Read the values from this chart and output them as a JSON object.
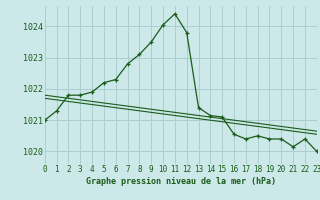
{
  "title": "Graphe pression niveau de la mer (hPa)",
  "background_color": "#cce8e8",
  "grid_color": "#aacfcf",
  "line_color": "#1a5c1a",
  "hours": [
    0,
    1,
    2,
    3,
    4,
    5,
    6,
    7,
    8,
    9,
    10,
    11,
    12,
    13,
    14,
    15,
    16,
    17,
    18,
    19,
    20,
    21,
    22,
    23
  ],
  "pressure": [
    1021.0,
    1021.3,
    1021.8,
    1021.8,
    1021.9,
    1022.2,
    1022.3,
    1022.8,
    1023.1,
    1023.5,
    1024.05,
    1024.4,
    1023.8,
    1021.4,
    1021.15,
    1021.1,
    1020.55,
    1020.4,
    1020.5,
    1020.4,
    1020.4,
    1020.15,
    1020.4,
    1020.0
  ],
  "trend1_x": [
    0,
    23
  ],
  "trend1_y": [
    1021.8,
    1020.65
  ],
  "trend2_x": [
    0,
    23
  ],
  "trend2_y": [
    1021.7,
    1020.55
  ],
  "ylim": [
    1019.6,
    1024.65
  ],
  "xlim": [
    0,
    23
  ],
  "yticks": [
    1020,
    1021,
    1022,
    1023,
    1024
  ],
  "xticks": [
    0,
    1,
    2,
    3,
    4,
    5,
    6,
    7,
    8,
    9,
    10,
    11,
    12,
    13,
    14,
    15,
    16,
    17,
    18,
    19,
    20,
    21,
    22,
    23
  ],
  "xlabel_fontsize": 6.0,
  "tick_fontsize": 5.5,
  "ytick_fontsize": 6.0
}
